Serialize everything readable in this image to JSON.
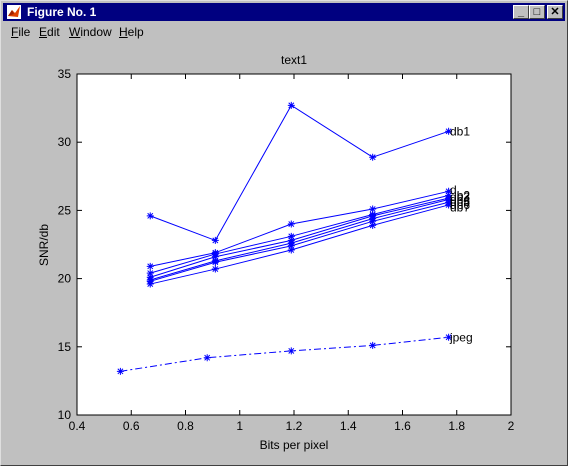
{
  "window": {
    "title": "Figure No. 1"
  },
  "titlebar_buttons": {
    "minimize": "_",
    "maximize": "□",
    "close": "✕"
  },
  "menu": [
    {
      "first": "F",
      "rest": "ile"
    },
    {
      "first": "E",
      "rest": "dit"
    },
    {
      "first": "W",
      "rest": "indow"
    },
    {
      "first": "H",
      "rest": "elp"
    }
  ],
  "colors": {
    "background": "#c0c0c0",
    "axes": "#ffffff",
    "series": "#0000ff",
    "titlebar": "#000080"
  },
  "chart_data": {
    "type": "line",
    "title": "text1",
    "xlabel": "Bits per pixel",
    "ylabel": "SNR/db",
    "xlim": [
      0.4,
      2
    ],
    "ylim": [
      10,
      35
    ],
    "xticks": [
      "0.4",
      "0.6",
      "0.8",
      "1",
      "1.2",
      "1.4",
      "1.6",
      "1.8",
      "2"
    ],
    "yticks": [
      "10",
      "15",
      "20",
      "25",
      "30",
      "35"
    ],
    "grid": false,
    "series": [
      {
        "name": "db1",
        "style": "solid",
        "x": [
          0.67,
          0.91,
          1.19,
          1.49,
          1.77
        ],
        "y": [
          24.6,
          22.8,
          32.7,
          28.9,
          30.8
        ]
      },
      {
        "name": "db2",
        "style": "solid",
        "x": [
          0.67,
          0.91,
          1.19,
          1.49,
          1.77
        ],
        "y": [
          20.9,
          21.9,
          24.0,
          25.1,
          26.4
        ]
      },
      {
        "name": "db3",
        "style": "solid",
        "x": [
          0.67,
          0.91,
          1.19,
          1.49,
          1.77
        ],
        "y": [
          20.4,
          21.8,
          23.1,
          24.7,
          26.1
        ]
      },
      {
        "name": "db4",
        "style": "solid",
        "x": [
          0.67,
          0.91,
          1.19,
          1.49,
          1.77
        ],
        "y": [
          20.1,
          21.6,
          22.8,
          24.6,
          25.9
        ]
      },
      {
        "name": "db5",
        "style": "solid",
        "x": [
          0.67,
          0.91,
          1.19,
          1.49,
          1.77
        ],
        "y": [
          19.9,
          21.3,
          22.6,
          24.4,
          25.8
        ]
      },
      {
        "name": "db6",
        "style": "solid",
        "x": [
          0.67,
          0.91,
          1.19,
          1.49,
          1.77
        ],
        "y": [
          19.8,
          21.2,
          22.4,
          24.2,
          25.6
        ]
      },
      {
        "name": "db7",
        "style": "solid",
        "x": [
          0.67,
          0.91,
          1.19,
          1.49,
          1.77
        ],
        "y": [
          19.6,
          20.7,
          22.1,
          23.9,
          25.4
        ]
      },
      {
        "name": "jpeg",
        "style": "dashdot",
        "x": [
          0.56,
          0.88,
          1.19,
          1.49,
          1.77
        ],
        "y": [
          13.2,
          14.2,
          14.7,
          15.1,
          15.7
        ]
      }
    ],
    "labels": [
      "db1",
      "d",
      "b2",
      "db3",
      "db4",
      "db5",
      "db6",
      "db7",
      "jpeg"
    ]
  }
}
